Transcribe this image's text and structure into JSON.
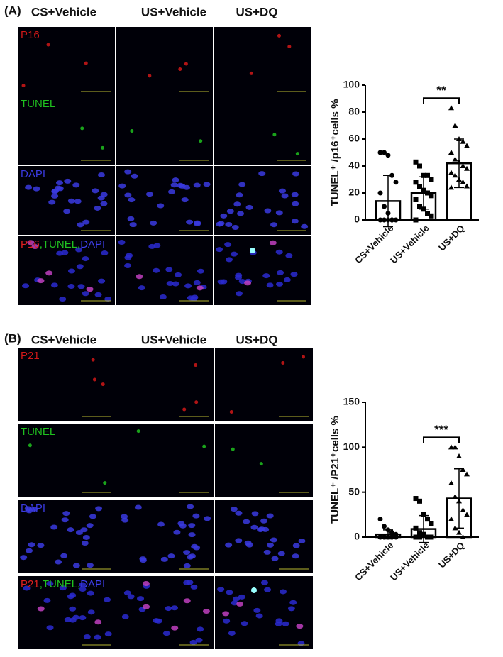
{
  "panels": [
    {
      "label": "(A)",
      "columns": [
        "CS+Vehicle",
        "US+Vehicle",
        "US+DQ"
      ],
      "rows": [
        "P16",
        "TUNEL",
        "DAPI"
      ],
      "merged": [
        "P16",
        ",TUNEL,",
        "DAPI"
      ]
    },
    {
      "label": "(B)",
      "columns": [
        "CS+Vehicle",
        "US+Vehicle",
        "US+DQ"
      ],
      "rows": [
        "P21",
        "TUNEL",
        "DAPI"
      ],
      "merged": [
        "P21",
        ",TUNEL,",
        "DAPI"
      ]
    }
  ],
  "chart_data": [
    {
      "type": "bar",
      "ylabel": "TUNEL⁺ /p16⁺cells %",
      "categories": [
        "CS+Vehicle",
        "US+Vehicle",
        "US+DQ"
      ],
      "values": [
        14,
        20,
        42
      ],
      "errors": [
        19,
        12,
        18
      ],
      "markers": [
        "circle",
        "square",
        "triangle"
      ],
      "points": [
        [
          50,
          50,
          48,
          33,
          28,
          20,
          10,
          5,
          0,
          0,
          0,
          0,
          0,
          0
        ],
        [
          43,
          40,
          33,
          33,
          30,
          28,
          25,
          22,
          20,
          18,
          15,
          10,
          8,
          5,
          3,
          0
        ],
        [
          83,
          70,
          60,
          58,
          55,
          50,
          45,
          43,
          40,
          38,
          35,
          33,
          30,
          28,
          25,
          24
        ]
      ],
      "significance": {
        "label": "**",
        "between": [
          1,
          2
        ]
      },
      "ylim": [
        0,
        100
      ],
      "yticks": [
        0,
        20,
        40,
        60,
        80,
        100
      ],
      "color": "#ffffff"
    },
    {
      "type": "bar",
      "ylabel": "TUNEL⁺ /P21⁺cells %",
      "categories": [
        "CS+Vehicle",
        "US+Vehicle",
        "US+DQ"
      ],
      "values": [
        3,
        9,
        43
      ],
      "errors": [
        5,
        15,
        33
      ],
      "markers": [
        "circle",
        "square",
        "triangle"
      ],
      "points": [
        [
          20,
          12,
          8,
          5,
          3,
          0,
          0,
          0,
          0,
          0,
          0
        ],
        [
          43,
          40,
          25,
          20,
          15,
          10,
          5,
          3,
          0,
          0,
          0,
          0
        ],
        [
          100,
          100,
          90,
          75,
          70,
          60,
          45,
          40,
          30,
          25,
          20,
          10,
          5,
          0
        ]
      ],
      "significance": {
        "label": "***",
        "between": [
          1,
          2
        ]
      },
      "ylim": [
        0,
        150
      ],
      "yticks": [
        0,
        50,
        100,
        150
      ],
      "color": "#ffffff"
    }
  ]
}
